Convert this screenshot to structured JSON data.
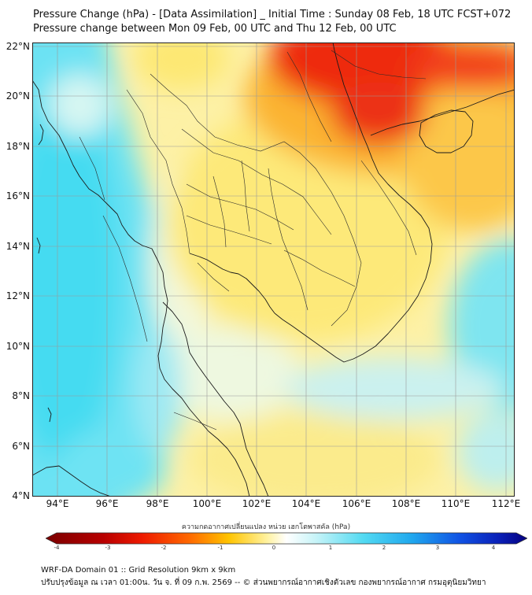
{
  "title_line1": "Pressure Change (hPa) - [Data Assimilation] _ Initial Time : Sunday 08 Feb, 18 UTC FCST+072",
  "title_line2": "Pressure change between Mon 09 Feb, 00 UTC and Thu 12 Feb, 00 UTC",
  "lat_labels": [
    "22°N",
    "20°N",
    "18°N",
    "16°N",
    "14°N",
    "12°N",
    "10°N",
    "8°N",
    "6°N",
    "4°N"
  ],
  "lon_labels": [
    "94°E",
    "96°E",
    "98°E",
    "100°E",
    "102°E",
    "104°E",
    "106°E",
    "108°E",
    "110°E",
    "112°E"
  ],
  "colorbar": {
    "title": "ความกดอากาศเปลี่ยนแปลง หน่วย เฮกโตพาสคัล (hPa)",
    "ticks": [
      "-4",
      "-3",
      "-2",
      "-1",
      "0",
      "1",
      "2",
      "3",
      "4"
    ],
    "colors": {
      "neg4": "#7a0000",
      "neg3": "#e00000",
      "neg2": "#ff8a00",
      "neg1": "#ffe84a",
      "zero": "#ffffff",
      "pos1": "#c8f4f8",
      "pos2": "#38d2ee",
      "pos3": "#1060e8",
      "pos4": "#050080"
    }
  },
  "footer_line1": "WRF-DA Domain 01 :: Grid Resolution 9km x 9km",
  "footer_line2": "ปรับปรุงข้อมูล ณ เวลา 01:00น. วัน จ. ที่ 09 ก.พ. 2569 -- © ส่วนพยากรณ์อากาศเชิงตัวเลข กองพยากรณ์อากาศ กรมอุตุนิยมวิทยา",
  "map": {
    "lon_range": [
      93,
      112.4
    ],
    "lat_range": [
      4,
      22.2
    ],
    "field_colors": {
      "cyan": "#55dff2",
      "light_cyan": "#b8f1f6",
      "pale": "#f7fbe6",
      "yellow": "#fde873",
      "orange": "#fbb02a",
      "red": "#ef2a10",
      "dark_red": "#d40c04"
    }
  }
}
